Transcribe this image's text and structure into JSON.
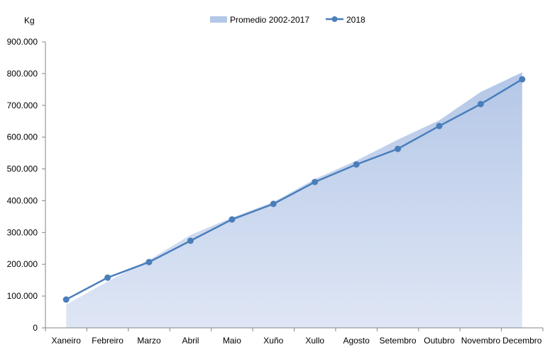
{
  "chart_data": {
    "type": "line",
    "title": "",
    "ylabel": "Kg",
    "xlabel": "",
    "ylim": [
      0,
      900000
    ],
    "yticks": [
      0,
      100000,
      200000,
      300000,
      400000,
      500000,
      600000,
      700000,
      800000,
      900000
    ],
    "ytick_labels": [
      "0",
      "100.000",
      "200.000",
      "300.000",
      "400.000",
      "500.000",
      "600.000",
      "700.000",
      "800.000",
      "900.000"
    ],
    "categories": [
      "Xaneiro",
      "Febreiro",
      "Marzo",
      "Abril",
      "Maio",
      "Xuño",
      "Xullo",
      "Agosto",
      "Setembro",
      "Outubro",
      "Novembro",
      "Decembro"
    ],
    "grid": false,
    "legend_position": "top",
    "series": [
      {
        "name": "Promedio 2002-2017",
        "kind": "area",
        "color": "#b4c7e7",
        "values": [
          73000,
          146000,
          214000,
          292000,
          347000,
          396000,
          468000,
          526000,
          592000,
          653000,
          742000,
          804000
        ]
      },
      {
        "name": "2018",
        "kind": "line-markers",
        "color": "#4a7ebb",
        "values": [
          89000,
          158000,
          207000,
          274000,
          341000,
          390000,
          459000,
          514000,
          563000,
          635000,
          704000,
          782000
        ]
      }
    ]
  }
}
